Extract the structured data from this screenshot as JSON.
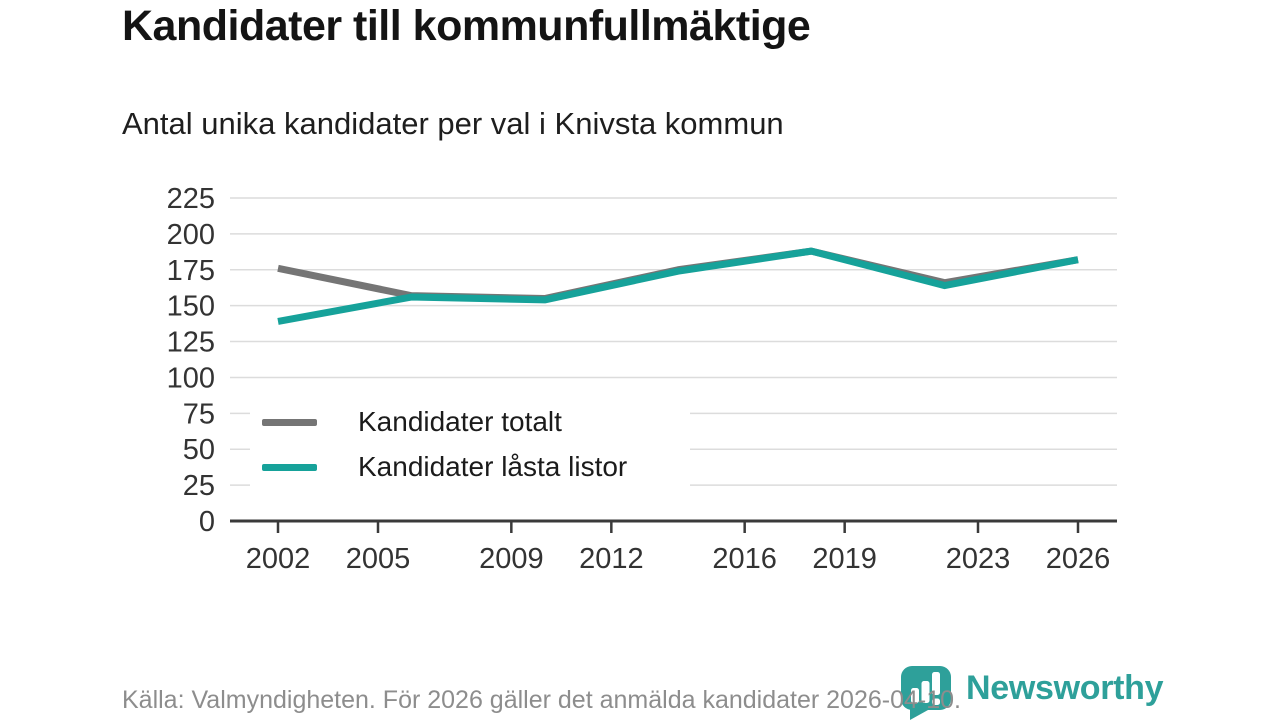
{
  "title": "Kandidater till kommunfullmäktige",
  "subtitle": "Antal unika kandidater per val i Knivsta kommun",
  "footer": {
    "source": "Källa: Valmyndigheten. För 2026 gäller det anmälda kandidater 2026-04-10."
  },
  "logo": {
    "wordmark": "Newsworthy",
    "icon": "speech-bubble-bar-chart-icon",
    "color": "#2EA09A"
  },
  "colors": {
    "accent_teal": "#16A29A",
    "series_gray": "#757575",
    "gridline": "#dcdcdc",
    "axis": "#3a3a3a",
    "tick_label": "#333333",
    "footer_text": "#8d8d8d"
  },
  "chart_data": {
    "type": "line",
    "title": "Kandidater till kommunfullmäktige",
    "subtitle": "Antal unika kandidater per val i Knivsta kommun",
    "x": [
      2002,
      2006,
      2010,
      2014,
      2018,
      2022,
      2026
    ],
    "series": [
      {
        "name": "Kandidater totalt",
        "color": "#757575",
        "values": [
          176,
          157,
          155,
          175,
          188,
          166,
          182
        ]
      },
      {
        "name": "Kandidater låsta listor",
        "color": "#16A29A",
        "values": [
          139,
          156,
          154,
          174,
          188,
          164,
          182
        ]
      }
    ],
    "xticks": [
      2002,
      2005,
      2009,
      2012,
      2016,
      2019,
      2023,
      2026
    ],
    "yticks": [
      0,
      25,
      50,
      75,
      100,
      125,
      150,
      175,
      200,
      225
    ],
    "xlim": [
      2002,
      2026
    ],
    "ylim": [
      0,
      225
    ],
    "grid": "horizontal",
    "legend_position": "inside-lower-left",
    "xlabel": "",
    "ylabel": ""
  }
}
